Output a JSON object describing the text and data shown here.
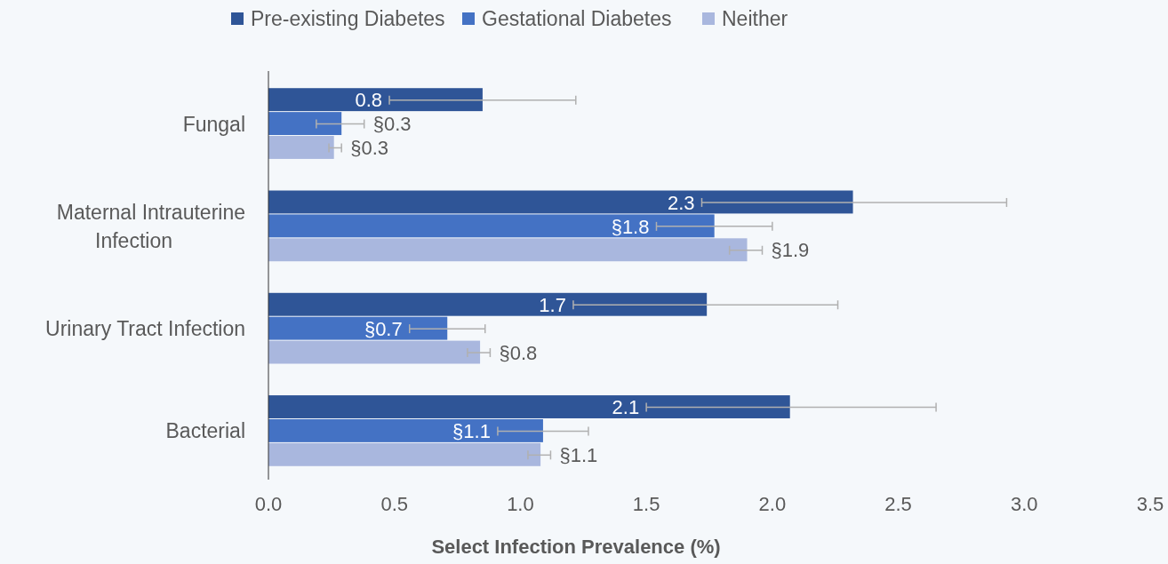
{
  "chart_data": {
    "type": "bar",
    "orientation": "horizontal",
    "xlabel": "Select Infection Prevalence (%)",
    "categories": [
      "Fungal",
      "Maternal Intrauterine Infection",
      "Urinary Tract Infection",
      "Bacterial"
    ],
    "series": [
      {
        "name": "Pre-existing Diabetes",
        "color": "#2f5597",
        "values": [
          0.85,
          2.32,
          1.74,
          2.07
        ],
        "errors": [
          [
            0.48,
            1.22
          ],
          [
            1.72,
            2.93
          ],
          [
            1.21,
            2.26
          ],
          [
            1.5,
            2.65
          ]
        ],
        "value_labels": [
          "0.8",
          "2.3",
          "1.7",
          "2.1"
        ]
      },
      {
        "name": "Gestational Diabetes",
        "color": "#4472c4",
        "values": [
          0.29,
          1.77,
          0.71,
          1.09
        ],
        "errors": [
          [
            0.19,
            0.38
          ],
          [
            1.54,
            2.0
          ],
          [
            0.56,
            0.86
          ],
          [
            0.91,
            1.27
          ]
        ],
        "value_labels": [
          "§0.3",
          "§1.8",
          "§0.7",
          "§1.1"
        ]
      },
      {
        "name": "Neither",
        "color": "#a9b7de",
        "values": [
          0.26,
          1.9,
          0.84,
          1.08
        ],
        "errors": [
          [
            0.24,
            0.29
          ],
          [
            1.83,
            1.96
          ],
          [
            0.79,
            0.88
          ],
          [
            1.03,
            1.12
          ]
        ],
        "value_labels": [
          "§0.3",
          "§1.9",
          "§0.8",
          "§1.1"
        ]
      }
    ],
    "xlim": [
      0,
      3.5
    ],
    "xticks": [
      {
        "value": 0,
        "label": "0.0"
      },
      {
        "value": 0.5,
        "label": "0.5"
      },
      {
        "value": 1,
        "label": "1.0"
      },
      {
        "value": 1.5,
        "label": "1.5"
      },
      {
        "value": 2,
        "label": "2.0"
      },
      {
        "value": 2.5,
        "label": "2.5"
      },
      {
        "value": 3,
        "label": "3.0"
      },
      {
        "value": 3.5,
        "label": "3.5"
      }
    ],
    "grid": false,
    "legend": "top"
  }
}
